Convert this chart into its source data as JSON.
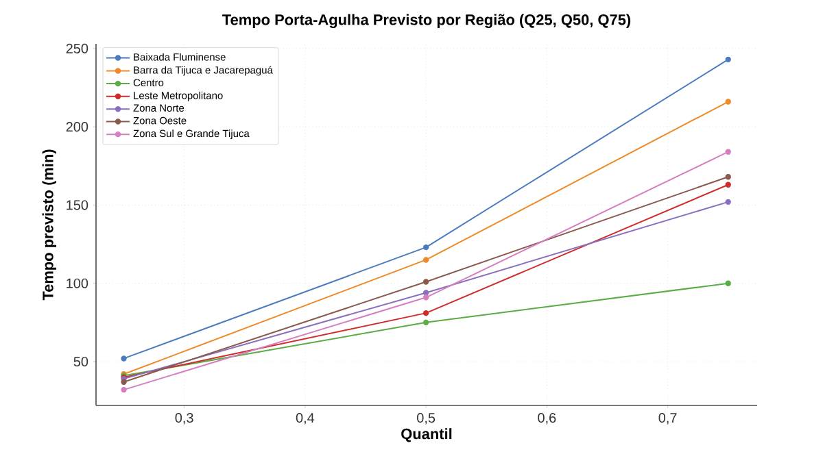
{
  "chart_data": {
    "type": "line",
    "title": "Tempo Porta-Agulha Previsto por Região (Q25, Q50, Q75)",
    "xlabel": "Quantil",
    "ylabel": "Tempo previsto (min)",
    "x": [
      0.25,
      0.5,
      0.75
    ],
    "xlim": [
      0.227,
      0.774
    ],
    "ylim": [
      22,
      253
    ],
    "xticks": [
      {
        "value": 0.3,
        "label": "0,3"
      },
      {
        "value": 0.4,
        "label": "0,4"
      },
      {
        "value": 0.5,
        "label": "0,5"
      },
      {
        "value": 0.6,
        "label": "0,6"
      },
      {
        "value": 0.7,
        "label": "0,7"
      }
    ],
    "yticks": [
      50,
      100,
      150,
      200,
      250
    ],
    "grid": true,
    "legend": "top left",
    "marker": "circle",
    "line_style": "solid",
    "series": [
      {
        "name": "Baixada Fluminense",
        "color": "#4c7bbf",
        "values": [
          52,
          123,
          243
        ]
      },
      {
        "name": "Barra da Tijuca e Jacarepaguá",
        "color": "#ee8a27",
        "values": [
          42,
          115,
          216
        ]
      },
      {
        "name": "Centro",
        "color": "#5aac45",
        "values": [
          41,
          75,
          100
        ]
      },
      {
        "name": "Leste Metropolitano",
        "color": "#cf2d2d",
        "values": [
          40,
          81,
          163
        ]
      },
      {
        "name": "Zona Norte",
        "color": "#8a6fbf",
        "values": [
          39,
          94,
          152
        ]
      },
      {
        "name": "Zona Oeste",
        "color": "#8a5a4c",
        "values": [
          37,
          101,
          168
        ]
      },
      {
        "name": "Zona Sul e Grande Tijuca",
        "color": "#d67fc0",
        "values": [
          32,
          91,
          184
        ]
      }
    ]
  }
}
